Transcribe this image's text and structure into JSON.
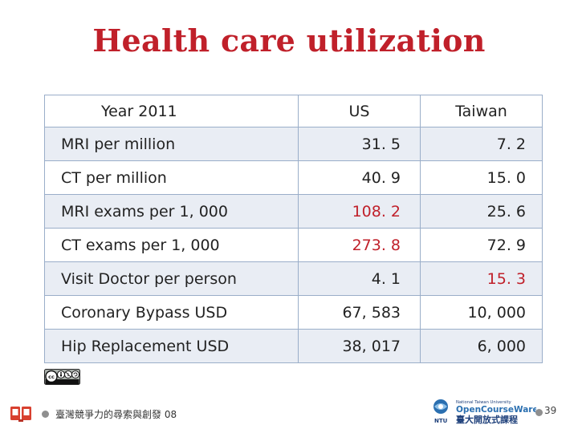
{
  "slide": {
    "title": "Health care utilization",
    "page_number": "39"
  },
  "table": {
    "headers": [
      "Year 2011",
      "US",
      "Taiwan"
    ],
    "rows": [
      {
        "label": "MRI per million",
        "us": "31. 5",
        "taiwan": "7. 2",
        "highlight": "none"
      },
      {
        "label": "CT per million",
        "us": "40. 9",
        "taiwan": "15. 0",
        "highlight": "none"
      },
      {
        "label": "MRI exams per 1, 000",
        "us": "108. 2",
        "taiwan": "25. 6",
        "highlight": "us"
      },
      {
        "label": "CT exams per 1, 000",
        "us": "273. 8",
        "taiwan": "72. 9",
        "highlight": "us"
      },
      {
        "label": "Visit Doctor per person",
        "us": "4. 1",
        "taiwan": "15. 3",
        "highlight": "taiwan"
      },
      {
        "label": "Coronary Bypass USD",
        "us": "67, 583",
        "taiwan": "10, 000",
        "highlight": "none"
      },
      {
        "label": "Hip  Replacement USD",
        "us": "38, 017",
        "taiwan": "6, 000",
        "highlight": "none"
      }
    ],
    "highlight_color": "#c0202a"
  },
  "footer": {
    "course_text": "臺灣競爭力的尋索與創發 08",
    "cc_license_icon": "cc-by-nc-sa-icon",
    "left_icon": "dual-screens-icon",
    "right_logo": {
      "line1": "National Taiwan University",
      "line2": "OpenCourseWare",
      "line3": "臺大開放式課程",
      "mark": "NTU"
    }
  }
}
